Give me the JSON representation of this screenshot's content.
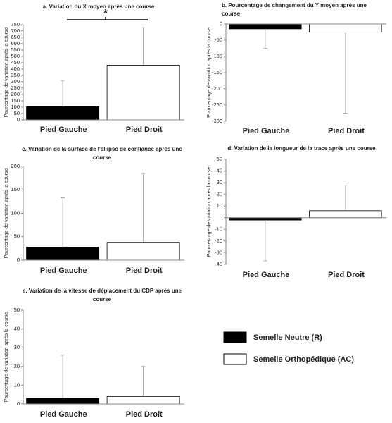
{
  "chart_data": [
    {
      "type": "bar",
      "title": "a. Variation du X moyen après une course",
      "ylabel": "Pourcentage de variation après la course",
      "categories": [
        "Pied Gauche",
        "Pied Droit"
      ],
      "values": [
        105,
        430
      ],
      "errors": [
        205,
        300
      ],
      "colors": [
        "#000000",
        "#ffffff"
      ],
      "ylim": [
        0,
        750
      ],
      "yticks": [
        0,
        50,
        100,
        150,
        200,
        250,
        300,
        350,
        400,
        450,
        500,
        550,
        600,
        650,
        700,
        750
      ],
      "annotation": "*"
    },
    {
      "type": "bar",
      "title": "b. Pourcentage de changement du Y moyen après une course",
      "ylabel": "Pourcentage de variation après la course",
      "categories": [
        "Pied Gauche",
        "Pied Droit"
      ],
      "values": [
        -15,
        -25
      ],
      "errors": [
        60,
        250
      ],
      "colors": [
        "#000000",
        "#ffffff"
      ],
      "ylim": [
        -300,
        0
      ],
      "yticks": [
        0,
        -50,
        -100,
        -150,
        -200,
        -250,
        -300
      ]
    },
    {
      "type": "bar",
      "title": "c. Variation de la surface de l'ellipse de confiance après une course",
      "ylabel": "Pourcentage de variation après la course",
      "categories": [
        "Pied Gauche",
        "Pied Droit"
      ],
      "values": [
        28,
        38
      ],
      "errors": [
        105,
        147
      ],
      "colors": [
        "#000000",
        "#ffffff"
      ],
      "ylim": [
        0,
        200
      ],
      "yticks": [
        0,
        50,
        100,
        150,
        200
      ]
    },
    {
      "type": "bar",
      "title": "d. Variation de la longueur de la trace après une course",
      "ylabel": "Pourcentage de variation après la course",
      "categories": [
        "Pied Gauche",
        "Pied Droit"
      ],
      "values": [
        -2,
        6
      ],
      "errors": [
        35,
        22
      ],
      "colors": [
        "#000000",
        "#ffffff"
      ],
      "ylim": [
        -40,
        50
      ],
      "yticks": [
        50,
        40,
        30,
        20,
        10,
        0,
        -10,
        -20,
        -30,
        -40
      ]
    },
    {
      "type": "bar",
      "title": "e. Variation de la vitesse de déplacement du CDP après une course",
      "ylabel": "Pourcentage de variation après la course",
      "categories": [
        "Pied Gauche",
        "Pied Droit"
      ],
      "values": [
        3,
        4
      ],
      "errors": [
        23,
        16
      ],
      "colors": [
        "#000000",
        "#ffffff"
      ],
      "ylim": [
        0,
        50
      ],
      "yticks": [
        0,
        10,
        20,
        30,
        40,
        50
      ]
    }
  ],
  "legend": [
    {
      "name": "Semelle Neutre (R)",
      "color": "#000000"
    },
    {
      "name": "Semelle Orthopédique (AC)",
      "color": "#ffffff"
    }
  ]
}
